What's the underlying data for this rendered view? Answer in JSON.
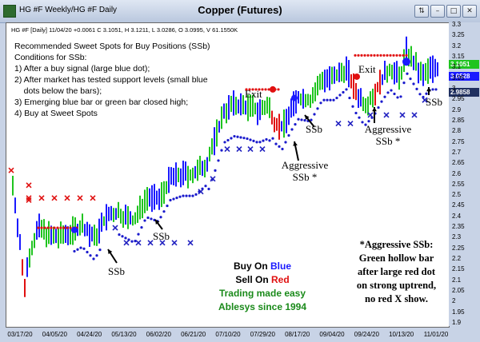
{
  "window": {
    "title_left": "HG #F Weekly/HG #F Daily",
    "title_center": "Copper (Futures)",
    "buttons": [
      "⇅",
      "–",
      "□",
      "✕"
    ]
  },
  "chart_header": {
    "info": "HG #F [Daily] 11/04/20  +0.0061 C 3.1051, H 3.1211, L 3.0286, O 3.0995, V 61.1550K"
  },
  "notes": {
    "lines": [
      "Recommended Sweet Spots for Buy Positions (SSb)",
      "Conditions for SSb:",
      "1) After a buy signal (large blue dot);",
      "2) After market has tested support levels (small blue",
      "    dots below the bars);",
      "3) Emerging blue bar or green bar closed high;",
      "4) Buy at Sweet Spots"
    ]
  },
  "annotations": {
    "ssb1": "SSb",
    "ssb2": "SSb",
    "ssb3": "SSb",
    "ssb4": "SSb",
    "exit1": "Exit",
    "exit2": "Exit",
    "aggr1": "Aggressive\nSSb *",
    "aggr2": "Aggressive\nSSb *"
  },
  "legend": {
    "buy_prefix": "Buy On ",
    "buy_word": "Blue",
    "sell_prefix": "Sell On ",
    "sell_word": "Red",
    "line3": "Trading made easy",
    "line4": "Ablesys since 1994"
  },
  "note2": {
    "lines": [
      "*Aggressive SSb:",
      "Green hollow bar",
      "after large red dot",
      "on strong uptrend,",
      "no red X show."
    ]
  },
  "price_tags": {
    "green": "3.1051",
    "blue": "3.0528",
    "dark": "2.9858"
  },
  "colors": {
    "blue_bar": "#1a1aff",
    "green_bar": "#1fc41f",
    "red_bar": "#e01010",
    "blue_dot": "#1a1acc",
    "red_dot": "#e01010",
    "x_blue": "#2020c0",
    "x_red": "#e01010",
    "legend_green": "#1a8a1a"
  },
  "chart_data": {
    "type": "ohlc",
    "y_axis_ticks": [
      "3.3",
      "3.25",
      "3.2",
      "3.15",
      "3.1",
      "3.05",
      "3",
      "2.95",
      "2.9",
      "2.85",
      "2.8",
      "2.75",
      "2.7",
      "2.65",
      "2.6",
      "2.55",
      "2.5",
      "2.45",
      "2.4",
      "2.35",
      "2.3",
      "2.25",
      "2.2",
      "2.15",
      "2.1",
      "2.05",
      "2",
      "1.95",
      "1.9"
    ],
    "ylim": [
      1.9,
      3.3
    ],
    "x_axis_ticks": [
      "03/17/20",
      "04/05/20",
      "04/24/20",
      "05/13/20",
      "06/02/20",
      "06/21/20",
      "07/10/20",
      "07/29/20",
      "08/17/20",
      "09/04/20",
      "09/24/20",
      "10/13/20",
      "11/01/20"
    ],
    "last": {
      "open": 3.0995,
      "high": 3.1211,
      "low": 3.0286,
      "close": 3.1051,
      "volume": "61.1550K",
      "change": "+0.0061"
    }
  }
}
